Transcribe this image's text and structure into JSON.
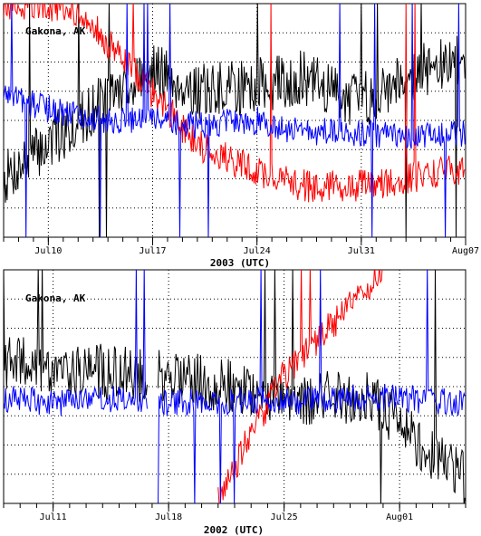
{
  "chart_data": [
    {
      "type": "line",
      "title": "",
      "annotation": "Gakona, AK",
      "xlabel": "2003 (UTC)",
      "ylabel": "",
      "x_unit": "days of July-August 2003",
      "xlim": [
        "2003-07-07",
        "2003-08-07"
      ],
      "x_ticks": [
        {
          "date": "2003-07-10",
          "label": "Jul10"
        },
        {
          "date": "2003-07-17",
          "label": "Jul17"
        },
        {
          "date": "2003-07-24",
          "label": "Jul24"
        },
        {
          "date": "2003-07-31",
          "label": "Jul31"
        },
        {
          "date": "2003-08-07",
          "label": "Aug07"
        }
      ],
      "grid": true,
      "series": [
        {
          "color": "#000000",
          "x": [
            "2003-07-07",
            "2003-07-10",
            "2003-07-14",
            "2003-07-17",
            "2003-07-20",
            "2003-07-24",
            "2003-07-27",
            "2003-07-31",
            "2003-08-03",
            "2003-08-07"
          ],
          "y": [
            0.25,
            0.4,
            0.6,
            0.72,
            0.62,
            0.65,
            0.68,
            0.58,
            0.7,
            0.75
          ]
        },
        {
          "color": "#ff0000",
          "x": [
            "2003-07-07",
            "2003-07-10",
            "2003-07-13",
            "2003-07-17",
            "2003-07-20",
            "2003-07-24",
            "2003-07-27",
            "2003-07-31",
            "2003-08-03",
            "2003-08-07"
          ],
          "y": [
            1.0,
            1.0,
            0.9,
            0.62,
            0.4,
            0.28,
            0.22,
            0.22,
            0.25,
            0.3
          ]
        },
        {
          "color": "#0000ff",
          "x": [
            "2003-07-07",
            "2003-07-10",
            "2003-07-14",
            "2003-07-17",
            "2003-07-20",
            "2003-07-24",
            "2003-07-27",
            "2003-07-31",
            "2003-08-03",
            "2003-08-07"
          ],
          "y": [
            0.6,
            0.55,
            0.5,
            0.5,
            0.48,
            0.5,
            0.45,
            0.45,
            0.42,
            0.45
          ]
        }
      ]
    },
    {
      "type": "line",
      "title": "",
      "annotation": "Gakona, AK",
      "xlabel": "2002 (UTC)",
      "ylabel": "",
      "x_unit": "days of July-August 2002",
      "xlim": [
        "2002-07-08",
        "2002-08-05"
      ],
      "x_ticks": [
        {
          "date": "2002-07-11",
          "label": "Jul11"
        },
        {
          "date": "2002-07-18",
          "label": "Jul18"
        },
        {
          "date": "2002-07-25",
          "label": "Jul25"
        },
        {
          "date": "2002-08-01",
          "label": "Aug01"
        }
      ],
      "grid": true,
      "series": [
        {
          "color": "#000000",
          "x": [
            "2002-07-08",
            "2002-07-12",
            "2002-07-16",
            "2002-07-18",
            "2002-07-22",
            "2002-07-26",
            "2002-07-30",
            "2002-08-01",
            "2002-08-03",
            "2002-08-05"
          ],
          "y": [
            0.6,
            0.58,
            0.55,
            0.55,
            0.5,
            0.45,
            0.45,
            0.35,
            0.2,
            0.1
          ]
        },
        {
          "color": "#ff0000",
          "x": [
            "2002-07-21",
            "2002-07-23",
            "2002-07-25",
            "2002-07-27",
            "2002-07-29",
            "2002-07-31"
          ],
          "y": [
            0.0,
            0.3,
            0.55,
            0.7,
            0.85,
            1.0
          ]
        },
        {
          "color": "#0000ff",
          "x": [
            "2002-07-08",
            "2002-07-12",
            "2002-07-16",
            "2002-07-18",
            "2002-07-22",
            "2002-07-26",
            "2002-07-30",
            "2002-08-01",
            "2002-08-03",
            "2002-08-05"
          ],
          "y": [
            0.45,
            0.43,
            0.45,
            0.43,
            0.44,
            0.44,
            0.45,
            0.45,
            0.44,
            0.43
          ]
        }
      ]
    }
  ]
}
